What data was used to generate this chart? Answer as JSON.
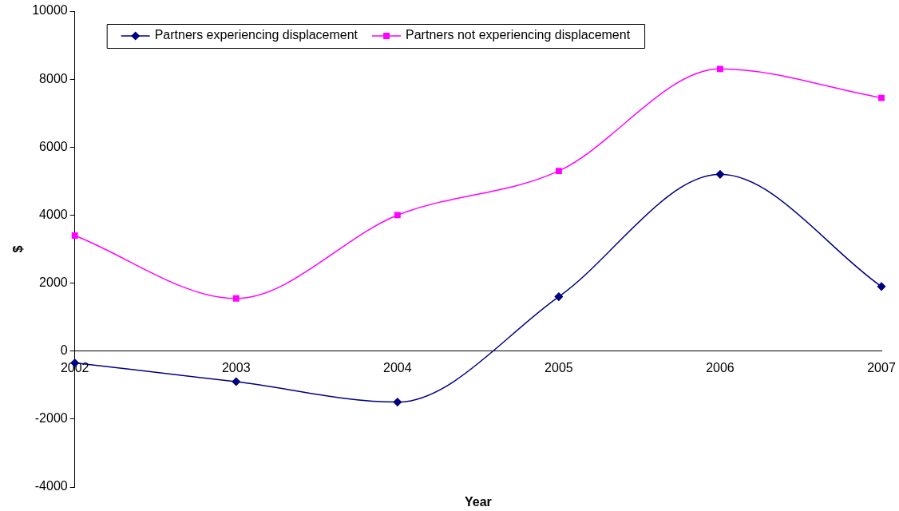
{
  "chart_data": {
    "type": "line",
    "xlabel": "Year",
    "ylabel": "$",
    "categories": [
      "2002",
      "2003",
      "2004",
      "2005",
      "2006",
      "2007"
    ],
    "series": [
      {
        "name": "Partners experiencing displacement",
        "color": "#000080",
        "marker": "diamond",
        "values": [
          -350,
          -900,
          -1500,
          1600,
          5200,
          1900
        ]
      },
      {
        "name": "Partners not experiencing displacement",
        "color": "#ff00ff",
        "marker": "square",
        "values": [
          3400,
          1550,
          4000,
          5300,
          8300,
          7450
        ]
      }
    ],
    "ylim": [
      -4000,
      10000
    ],
    "yticks": [
      -4000,
      -2000,
      0,
      2000,
      4000,
      6000,
      8000,
      10000
    ],
    "grid": false,
    "legend": "top left"
  }
}
